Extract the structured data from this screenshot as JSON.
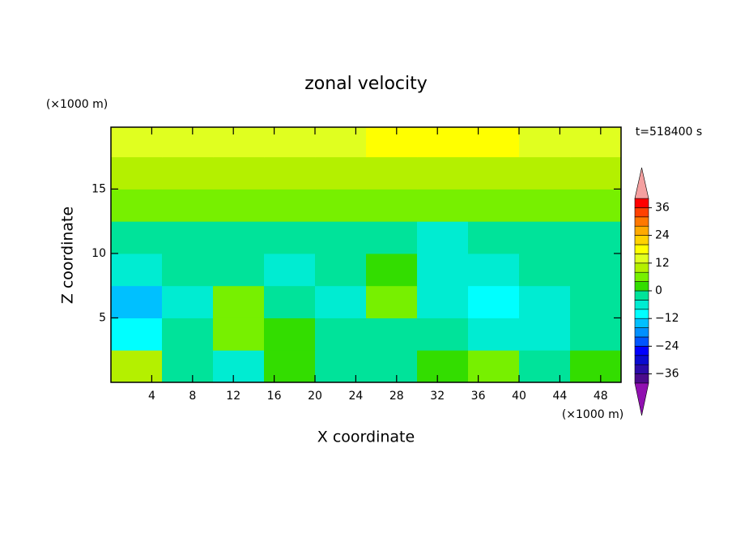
{
  "chart_data": {
    "type": "contour",
    "title": "zonal velocity",
    "y_unit": "(×1000 m)",
    "x_unit": "(×1000 m)",
    "time_label": "t=518400 s",
    "xlabel": "X coordinate",
    "ylabel": "Z coordinate",
    "xlim": [
      0,
      50
    ],
    "ylim": [
      0,
      19.8
    ],
    "xticks": [
      4,
      8,
      12,
      16,
      20,
      24,
      28,
      32,
      36,
      40,
      44,
      48
    ],
    "yticks": [
      5,
      10,
      15
    ],
    "x": [
      2.5,
      7.5,
      12.5,
      17.5,
      22.5,
      27.5,
      32.5,
      37.5,
      42.5,
      47.5
    ],
    "z": [
      1.25,
      3.75,
      6.25,
      8.75,
      11.25,
      13.75,
      16.25,
      18.75
    ],
    "values": [
      [
        8,
        -3,
        -6,
        2,
        -1,
        -2,
        0,
        4,
        -1,
        2
      ],
      [
        -10,
        -2,
        5,
        0,
        -3,
        -2,
        -4,
        -6,
        -8,
        -3
      ],
      [
        -14,
        -5,
        6,
        -2,
        -8,
        6,
        -6,
        -10,
        -8,
        -4
      ],
      [
        -7,
        -4,
        -2,
        -8,
        -1,
        2,
        -6,
        -8,
        -4,
        -2
      ],
      [
        -2,
        -3,
        -4,
        -3,
        -3,
        -4,
        -5,
        -3,
        -2,
        -1
      ],
      [
        5,
        4,
        4,
        5,
        6,
        6,
        4,
        4,
        5,
        5
      ],
      [
        10,
        9,
        10,
        9,
        10,
        10,
        9,
        10,
        10,
        9
      ],
      [
        12,
        14,
        13,
        12,
        14,
        16,
        18,
        17,
        14,
        12
      ]
    ],
    "clim": [
      -40,
      40
    ],
    "colors": [
      "#4b0a8c",
      "#2a0aa8",
      "#0a0ad0",
      "#0000ff",
      "#0055ff",
      "#0090ff",
      "#00c0ff",
      "#00ffff",
      "#00ecd2",
      "#00e39a",
      "#33dd00",
      "#77f000",
      "#b4f000",
      "#e0ff20",
      "#ffff00",
      "#ffd200",
      "#ffaa00",
      "#ff7800",
      "#ff4000",
      "#ff0000"
    ],
    "under_color": "#9010b0",
    "over_color": "#f4a0a0",
    "cticks": [
      {
        "value": -36,
        "label": "−36"
      },
      {
        "value": -24,
        "label": "−24"
      },
      {
        "value": -12,
        "label": "−12"
      },
      0,
      12,
      24,
      36
    ]
  }
}
